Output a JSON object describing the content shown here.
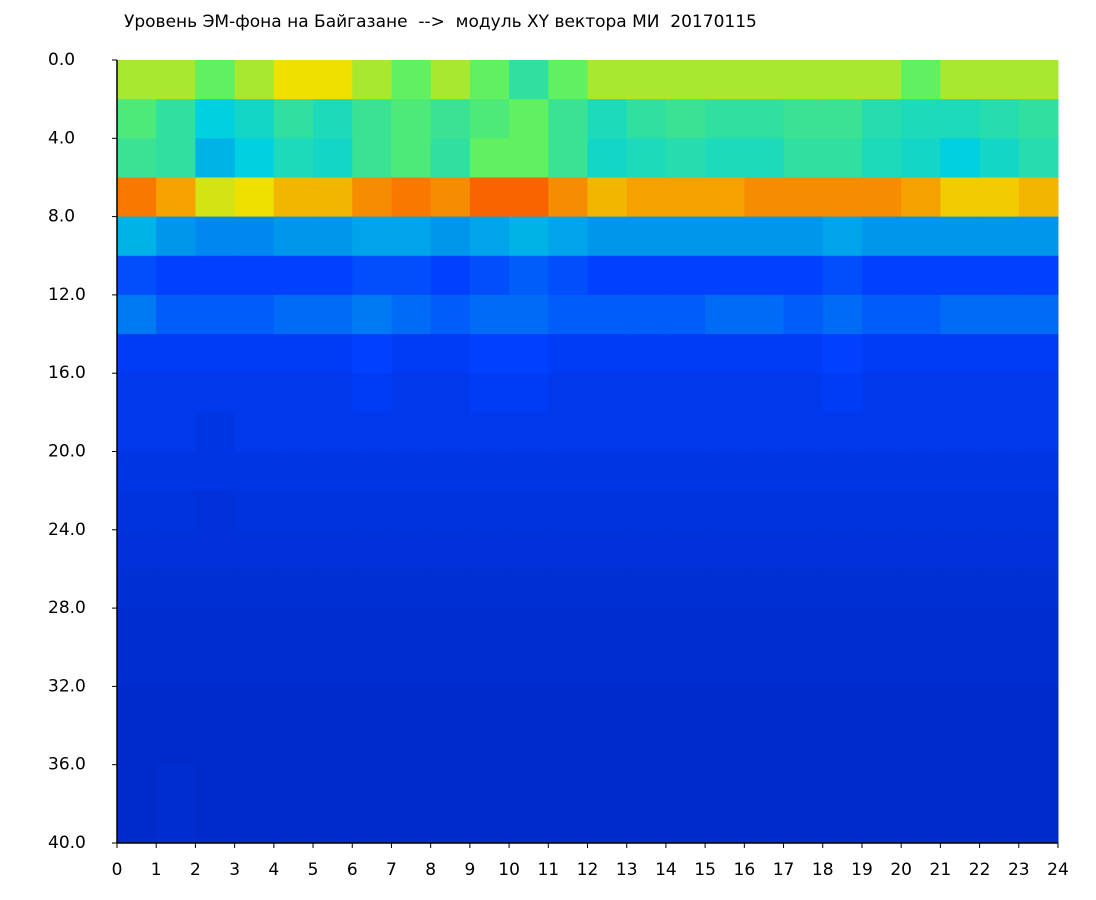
{
  "chart_data": {
    "type": "heatmap",
    "title": "Уровень ЭМ-фона на Байгазане  -->  модуль XY вектора МИ  20170115",
    "xbins": [
      0,
      1,
      2,
      3,
      4,
      5,
      6,
      7,
      8,
      9,
      10,
      11,
      12,
      13,
      14,
      15,
      16,
      17,
      18,
      19,
      20,
      21,
      22,
      23,
      24
    ],
    "ybins": [
      0,
      2,
      4,
      6,
      8,
      10,
      12,
      14,
      16,
      18,
      20,
      22,
      24,
      26,
      28,
      30,
      32,
      34,
      36,
      38,
      40
    ],
    "values": [
      [
        3.5,
        3.5,
        3,
        3.5,
        4,
        4,
        3.5,
        3,
        3.5,
        3,
        2.5,
        3,
        3.5,
        3.5,
        3.5,
        3.5,
        3.5,
        3.5,
        3.5,
        3.5,
        3,
        3.5,
        3.5,
        3.5
      ],
      [
        2.8,
        2.5,
        2,
        2.2,
        2.5,
        2.3,
        2.6,
        2.8,
        2.6,
        2.8,
        3,
        2.6,
        2.3,
        2.5,
        2.6,
        2.5,
        2.5,
        2.6,
        2.6,
        2.4,
        2.3,
        2.3,
        2.4,
        2.5
      ],
      [
        2.6,
        2.5,
        1.8,
        2,
        2.3,
        2.2,
        2.6,
        2.8,
        2.5,
        3,
        3,
        2.6,
        2.2,
        2.3,
        2.4,
        2.3,
        2.3,
        2.5,
        2.5,
        2.3,
        2.2,
        2,
        2.2,
        2.4
      ],
      [
        4.5,
        4.3,
        3.8,
        4,
        4.2,
        4.2,
        4.4,
        4.5,
        4.4,
        4.6,
        4.6,
        4.4,
        4.2,
        4.3,
        4.3,
        4.3,
        4.4,
        4.4,
        4.4,
        4.4,
        4.3,
        4.1,
        4.1,
        4.2
      ],
      [
        1.8,
        1.6,
        1.5,
        1.5,
        1.6,
        1.6,
        1.7,
        1.7,
        1.6,
        1.7,
        1.8,
        1.7,
        1.6,
        1.6,
        1.6,
        1.6,
        1.6,
        1.6,
        1.7,
        1.6,
        1.6,
        1.6,
        1.6,
        1.6
      ],
      [
        1.1,
        1,
        1,
        1,
        1,
        1,
        1.1,
        1.1,
        1,
        1.1,
        1.2,
        1.1,
        1,
        1,
        1,
        1,
        1,
        1,
        1.1,
        1,
        1,
        1,
        1,
        1
      ],
      [
        1.4,
        1.2,
        1.2,
        1.2,
        1.3,
        1.3,
        1.4,
        1.3,
        1.2,
        1.3,
        1.3,
        1.2,
        1.2,
        1.2,
        1.2,
        1.3,
        1.3,
        1.2,
        1.3,
        1.2,
        1.2,
        1.3,
        1.3,
        1.3
      ],
      [
        0.9,
        0.9,
        0.9,
        0.9,
        0.9,
        0.9,
        1,
        0.9,
        0.9,
        1,
        1,
        0.9,
        0.9,
        0.9,
        0.9,
        0.9,
        0.9,
        0.9,
        1,
        0.9,
        0.9,
        0.9,
        0.9,
        0.9
      ],
      [
        0.8,
        0.8,
        0.8,
        0.8,
        0.8,
        0.8,
        0.9,
        0.8,
        0.8,
        0.9,
        0.9,
        0.8,
        0.8,
        0.8,
        0.8,
        0.8,
        0.8,
        0.8,
        0.9,
        0.8,
        0.8,
        0.8,
        0.8,
        0.8
      ],
      [
        0.8,
        0.8,
        0.7,
        0.8,
        0.8,
        0.8,
        0.8,
        0.8,
        0.8,
        0.8,
        0.8,
        0.8,
        0.8,
        0.8,
        0.8,
        0.8,
        0.8,
        0.8,
        0.8,
        0.8,
        0.8,
        0.8,
        0.8,
        0.8
      ],
      [
        0.7,
        0.7,
        0.7,
        0.7,
        0.7,
        0.7,
        0.7,
        0.7,
        0.7,
        0.7,
        0.7,
        0.7,
        0.7,
        0.7,
        0.7,
        0.7,
        0.7,
        0.7,
        0.7,
        0.7,
        0.7,
        0.7,
        0.7,
        0.7
      ],
      [
        0.65,
        0.65,
        0.6,
        0.65,
        0.65,
        0.65,
        0.65,
        0.65,
        0.65,
        0.65,
        0.65,
        0.65,
        0.65,
        0.65,
        0.65,
        0.65,
        0.65,
        0.65,
        0.65,
        0.65,
        0.65,
        0.65,
        0.65,
        0.65
      ],
      [
        0.6,
        0.6,
        0.6,
        0.6,
        0.6,
        0.6,
        0.6,
        0.6,
        0.6,
        0.6,
        0.6,
        0.6,
        0.6,
        0.6,
        0.6,
        0.6,
        0.6,
        0.6,
        0.6,
        0.6,
        0.6,
        0.6,
        0.6,
        0.6
      ],
      [
        0.55,
        0.55,
        0.55,
        0.55,
        0.55,
        0.55,
        0.55,
        0.55,
        0.55,
        0.55,
        0.55,
        0.55,
        0.55,
        0.55,
        0.55,
        0.55,
        0.55,
        0.55,
        0.55,
        0.55,
        0.55,
        0.55,
        0.55,
        0.55
      ],
      [
        0.5,
        0.5,
        0.5,
        0.5,
        0.5,
        0.5,
        0.5,
        0.5,
        0.5,
        0.5,
        0.5,
        0.5,
        0.5,
        0.5,
        0.5,
        0.5,
        0.5,
        0.5,
        0.5,
        0.5,
        0.5,
        0.5,
        0.5,
        0.5
      ],
      [
        0.5,
        0.5,
        0.5,
        0.5,
        0.5,
        0.5,
        0.5,
        0.5,
        0.5,
        0.5,
        0.5,
        0.5,
        0.5,
        0.5,
        0.5,
        0.5,
        0.5,
        0.5,
        0.5,
        0.5,
        0.5,
        0.5,
        0.5,
        0.5
      ],
      [
        0.45,
        0.45,
        0.45,
        0.45,
        0.45,
        0.45,
        0.45,
        0.45,
        0.45,
        0.45,
        0.45,
        0.45,
        0.45,
        0.45,
        0.45,
        0.45,
        0.45,
        0.45,
        0.45,
        0.45,
        0.45,
        0.45,
        0.45,
        0.45
      ],
      [
        0.45,
        0.45,
        0.45,
        0.45,
        0.45,
        0.45,
        0.45,
        0.45,
        0.45,
        0.45,
        0.45,
        0.45,
        0.45,
        0.45,
        0.45,
        0.45,
        0.45,
        0.45,
        0.45,
        0.45,
        0.45,
        0.45,
        0.45,
        0.45
      ],
      [
        0.45,
        0.5,
        0.45,
        0.45,
        0.45,
        0.45,
        0.45,
        0.45,
        0.45,
        0.45,
        0.45,
        0.45,
        0.45,
        0.45,
        0.45,
        0.45,
        0.45,
        0.45,
        0.45,
        0.45,
        0.45,
        0.45,
        0.45,
        0.45
      ],
      [
        0.45,
        0.5,
        0.45,
        0.45,
        0.45,
        0.45,
        0.45,
        0.45,
        0.45,
        0.45,
        0.45,
        0.45,
        0.45,
        0.45,
        0.45,
        0.45,
        0.45,
        0.45,
        0.45,
        0.45,
        0.45,
        0.45,
        0.45,
        0.45
      ]
    ],
    "colorscale": [
      "#001aa0",
      "#0040ff",
      "#00d0e0",
      "#60f060",
      "#f0e000",
      "#ff1000"
    ],
    "zlim": [
      0,
      5
    ],
    "xlim": [
      0,
      24
    ],
    "xticks": [
      0,
      1,
      2,
      3,
      4,
      5,
      6,
      7,
      8,
      9,
      10,
      11,
      12,
      13,
      14,
      15,
      16,
      17,
      18,
      19,
      20,
      21,
      22,
      23,
      24
    ],
    "ylim": [
      0,
      40
    ],
    "yticks": [
      {
        "value": 0,
        "label": "0.0"
      },
      {
        "value": 4,
        "label": "4.0"
      },
      {
        "value": 8,
        "label": "8.0"
      },
      {
        "value": 12,
        "label": "12.0"
      },
      {
        "value": 16,
        "label": "16.0"
      },
      {
        "value": 20,
        "label": "20.0"
      },
      {
        "value": 24,
        "label": "24.0"
      },
      {
        "value": 28,
        "label": "28.0"
      },
      {
        "value": 32,
        "label": "32.0"
      },
      {
        "value": 36,
        "label": "36.0"
      },
      {
        "value": 40,
        "label": "40.0"
      }
    ]
  }
}
